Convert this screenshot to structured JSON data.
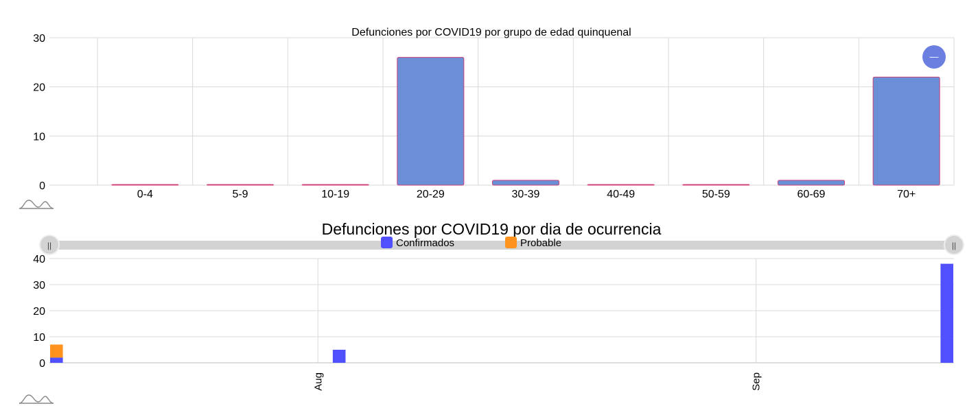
{
  "charts": {
    "age": {
      "chart_data": {
        "type": "bar",
        "title": "Defunciones por COVID19 por grupo de edad quinquenal",
        "categories": [
          "0-4",
          "5-9",
          "10-19",
          "20-29",
          "30-39",
          "40-49",
          "50-59",
          "60-69",
          "70+"
        ],
        "values": [
          0,
          0,
          0,
          26,
          1,
          0,
          0,
          1,
          22
        ],
        "ylim": [
          0,
          30
        ],
        "yticks": [
          0,
          10,
          20,
          30
        ],
        "grid": true,
        "bar_color": "#6a8fd6",
        "bar_border_color": "#d0407a"
      },
      "button_label": "—",
      "button_color": "#6b7fe0",
      "logo_icon": "wave-logo-icon"
    },
    "daily": {
      "chart_data": {
        "type": "bar",
        "stacked": true,
        "title": "Defunciones por COVID19 por dia de ocurrencia",
        "x": [
          "2020-07-13",
          "2020-08-02",
          "2020-09-14"
        ],
        "xticks": [
          "Aug",
          "Sep"
        ],
        "xtick_dates": [
          "2020-08-01",
          "2020-09-01"
        ],
        "xlim": [
          "2020-07-13",
          "2020-09-14"
        ],
        "series": [
          {
            "name": "Confirmados",
            "color": "#5050ff",
            "values": [
              2,
              5,
              38
            ]
          },
          {
            "name": "Probable",
            "color": "#ff931e",
            "values": [
              5,
              0,
              0
            ]
          }
        ],
        "ylim": [
          0,
          40
        ],
        "yticks": [
          0,
          10,
          20,
          30,
          40
        ],
        "grid": true,
        "legend": "top"
      },
      "slider_handle_left": "||",
      "slider_handle_right": "||",
      "logo_icon": "wave-logo-icon"
    }
  }
}
